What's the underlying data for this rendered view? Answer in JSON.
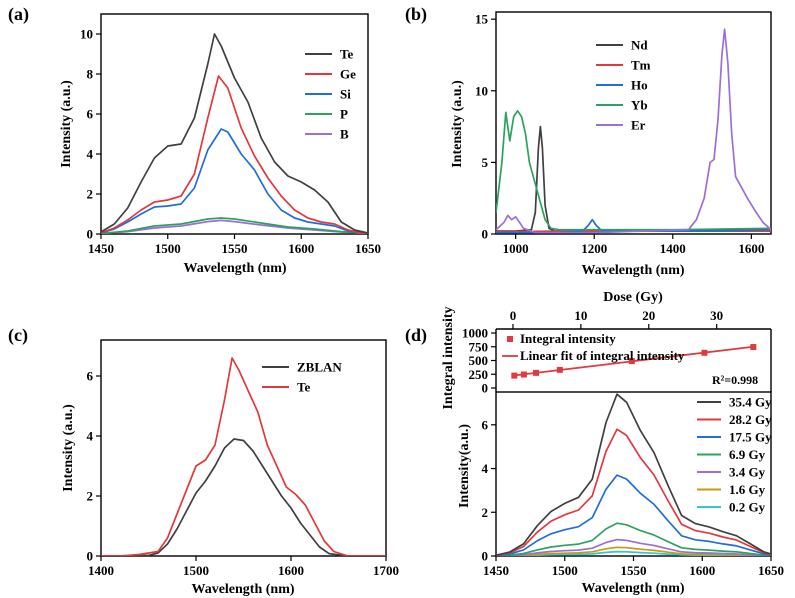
{
  "chart_data": [
    {
      "panel": "(a)",
      "type": "line",
      "xlabel": "Wavelength (nm)",
      "ylabel": "Intensity (a.u.)",
      "xlim": [
        1450,
        1650
      ],
      "ylim": [
        0,
        11
      ],
      "xticks": [
        1450,
        1500,
        1550,
        1600,
        1650
      ],
      "yticks": [
        0,
        2,
        4,
        6,
        8,
        10
      ],
      "legend_position": "top-right",
      "series": [
        {
          "name": "Te",
          "color": "#404040",
          "x": [
            1450,
            1460,
            1470,
            1480,
            1490,
            1500,
            1510,
            1520,
            1530,
            1535,
            1540,
            1550,
            1560,
            1570,
            1580,
            1590,
            1600,
            1610,
            1620,
            1630,
            1640,
            1650
          ],
          "y": [
            0.1,
            0.5,
            1.3,
            2.6,
            3.8,
            4.4,
            4.5,
            5.8,
            8.5,
            10.0,
            9.4,
            7.8,
            6.6,
            4.8,
            3.6,
            2.9,
            2.6,
            2.2,
            1.6,
            0.6,
            0.2,
            0.05
          ]
        },
        {
          "name": "Ge",
          "color": "#e0393e",
          "x": [
            1450,
            1460,
            1470,
            1480,
            1490,
            1500,
            1510,
            1520,
            1530,
            1538,
            1545,
            1555,
            1565,
            1575,
            1585,
            1595,
            1605,
            1615,
            1625,
            1635,
            1645,
            1650
          ],
          "y": [
            0.05,
            0.3,
            0.7,
            1.2,
            1.6,
            1.7,
            1.9,
            3.0,
            5.8,
            7.9,
            7.3,
            5.3,
            3.9,
            2.8,
            1.9,
            1.2,
            0.8,
            0.6,
            0.5,
            0.2,
            0.05,
            0.02
          ]
        },
        {
          "name": "Si",
          "color": "#1f6fd6",
          "x": [
            1450,
            1460,
            1470,
            1480,
            1490,
            1500,
            1510,
            1520,
            1530,
            1540,
            1545,
            1555,
            1565,
            1575,
            1585,
            1595,
            1605,
            1615,
            1625,
            1635,
            1645,
            1650
          ],
          "y": [
            0.05,
            0.25,
            0.6,
            1.0,
            1.35,
            1.4,
            1.5,
            2.3,
            4.2,
            5.25,
            5.1,
            4.0,
            3.2,
            2.0,
            1.2,
            0.8,
            0.6,
            0.5,
            0.4,
            0.15,
            0.05,
            0.02
          ]
        },
        {
          "name": "P",
          "color": "#2ca25f",
          "x": [
            1450,
            1470,
            1490,
            1510,
            1530,
            1540,
            1550,
            1570,
            1590,
            1610,
            1630,
            1650
          ],
          "y": [
            0.02,
            0.15,
            0.4,
            0.5,
            0.75,
            0.8,
            0.75,
            0.55,
            0.35,
            0.25,
            0.12,
            0.02
          ]
        },
        {
          "name": "B",
          "color": "#9c6fd6",
          "x": [
            1450,
            1470,
            1490,
            1510,
            1530,
            1540,
            1550,
            1570,
            1590,
            1610,
            1630,
            1650
          ],
          "y": [
            0.02,
            0.12,
            0.3,
            0.4,
            0.62,
            0.68,
            0.62,
            0.45,
            0.3,
            0.2,
            0.1,
            0.02
          ]
        }
      ]
    },
    {
      "panel": "(b)",
      "type": "line",
      "xlabel": "Wavelength (nm)",
      "ylabel": "Intensity (a.u.)",
      "xlim": [
        950,
        1650
      ],
      "ylim": [
        0,
        15.5
      ],
      "xticks": [
        1000,
        1200,
        1400,
        1600
      ],
      "yticks": [
        0,
        5,
        10,
        15
      ],
      "legend_position": "top-center",
      "series": [
        {
          "name": "Nd",
          "color": "#404040",
          "x": [
            950,
            1000,
            1040,
            1050,
            1058,
            1063,
            1068,
            1075,
            1085,
            1100,
            1200,
            1300,
            1400,
            1500,
            1650
          ],
          "y": [
            0.2,
            0.2,
            0.3,
            1.5,
            6.0,
            7.5,
            6.0,
            2.0,
            0.4,
            0.2,
            0.2,
            0.2,
            0.2,
            0.3,
            0.3
          ]
        },
        {
          "name": "Tm",
          "color": "#e0393e",
          "x": [
            950,
            1100,
            1300,
            1500,
            1650
          ],
          "y": [
            0.15,
            0.2,
            0.2,
            0.2,
            0.2
          ]
        },
        {
          "name": "Ho",
          "color": "#1f6fd6",
          "x": [
            950,
            1100,
            1170,
            1185,
            1195,
            1205,
            1220,
            1300,
            1500,
            1650
          ],
          "y": [
            0.1,
            0.1,
            0.2,
            0.6,
            1.0,
            0.6,
            0.2,
            0.2,
            0.2,
            0.3
          ]
        },
        {
          "name": "Yb",
          "color": "#2ca25f",
          "x": [
            950,
            965,
            975,
            985,
            995,
            1005,
            1015,
            1025,
            1035,
            1045,
            1060,
            1075,
            1090,
            1110,
            1200,
            1400,
            1650
          ],
          "y": [
            1.5,
            5.0,
            8.5,
            6.5,
            8.2,
            8.6,
            8.2,
            7.0,
            5.0,
            4.0,
            2.5,
            1.0,
            0.4,
            0.3,
            0.3,
            0.3,
            0.4
          ]
        },
        {
          "name": "Er",
          "color": "#9c6fd6",
          "x": [
            950,
            970,
            980,
            990,
            1000,
            1010,
            1020,
            1050,
            1200,
            1440,
            1460,
            1480,
            1495,
            1505,
            1515,
            1525,
            1532,
            1540,
            1550,
            1560,
            1570,
            1590,
            1610,
            1630,
            1650
          ],
          "y": [
            0.3,
            0.8,
            1.3,
            1.0,
            1.2,
            0.8,
            0.4,
            0.1,
            0.1,
            0.3,
            1.0,
            2.5,
            5.0,
            5.2,
            8.0,
            12.5,
            14.3,
            12.0,
            7.0,
            4.0,
            3.5,
            2.5,
            1.6,
            0.8,
            0.3
          ]
        }
      ]
    },
    {
      "panel": "(c)",
      "type": "line",
      "xlabel": "Wavelength (nm)",
      "ylabel": "Intensity (a.u.)",
      "xlim": [
        1400,
        1700
      ],
      "ylim": [
        0,
        7.2
      ],
      "xticks": [
        1400,
        1500,
        1600,
        1700
      ],
      "yticks": [
        0,
        2,
        4,
        6
      ],
      "legend_position": "top-right",
      "series": [
        {
          "name": "ZBLAN",
          "color": "#404040",
          "x": [
            1400,
            1430,
            1450,
            1460,
            1470,
            1480,
            1490,
            1500,
            1510,
            1520,
            1530,
            1540,
            1550,
            1560,
            1570,
            1580,
            1590,
            1600,
            1610,
            1620,
            1630,
            1640,
            1660,
            1700
          ],
          "y": [
            0,
            0,
            0.02,
            0.1,
            0.4,
            0.9,
            1.5,
            2.1,
            2.5,
            3.0,
            3.6,
            3.9,
            3.85,
            3.5,
            3.0,
            2.5,
            2.0,
            1.6,
            1.1,
            0.7,
            0.3,
            0.08,
            0,
            0
          ]
        },
        {
          "name": "Te",
          "color": "#e0393e",
          "x": [
            1400,
            1420,
            1440,
            1450,
            1460,
            1470,
            1480,
            1490,
            1500,
            1510,
            1520,
            1530,
            1538,
            1545,
            1555,
            1565,
            1575,
            1585,
            1595,
            1605,
            1615,
            1625,
            1635,
            1645,
            1660,
            1700
          ],
          "y": [
            0,
            0,
            0.05,
            0.1,
            0.15,
            0.6,
            1.4,
            2.2,
            3.0,
            3.2,
            3.7,
            5.2,
            6.6,
            6.2,
            5.5,
            4.8,
            3.7,
            3.0,
            2.3,
            2.05,
            1.7,
            1.1,
            0.5,
            0.15,
            0,
            0
          ]
        }
      ]
    },
    {
      "panel": "(d)",
      "type": "line",
      "xlabel": "Wavelength (nm)",
      "ylabel": "Intensity(a.u.)",
      "xlim": [
        1450,
        1650
      ],
      "ylim": [
        0,
        7.5
      ],
      "xticks": [
        1450,
        1500,
        1550,
        1600,
        1650
      ],
      "yticks": [
        0,
        2,
        4,
        6
      ],
      "legend_position": "right",
      "series": [
        {
          "name": "35.4 Gy",
          "color": "#404040",
          "peak": 7.4
        },
        {
          "name": "28.2 Gy",
          "color": "#e0393e",
          "peak": 5.8
        },
        {
          "name": "17.5 Gy",
          "color": "#1f6fd6",
          "peak": 3.7
        },
        {
          "name": "6.9  Gy",
          "color": "#2ca25f",
          "peak": 1.5
        },
        {
          "name": "3.4  Gy",
          "color": "#9c6fd6",
          "peak": 0.75
        },
        {
          "name": "1.6  Gy",
          "color": "#c89a10",
          "peak": 0.4
        },
        {
          "name": "0.2  Gy",
          "color": "#33c7c7",
          "peak": 0.2
        }
      ],
      "base_shape": {
        "x": [
          1450,
          1460,
          1470,
          1480,
          1490,
          1500,
          1510,
          1520,
          1530,
          1538,
          1545,
          1555,
          1565,
          1575,
          1585,
          1595,
          1605,
          1615,
          1625,
          1635,
          1645,
          1650
        ],
        "y": [
          0.02,
          0.1,
          0.3,
          0.75,
          1.1,
          1.3,
          1.45,
          1.9,
          3.3,
          4.0,
          3.8,
          3.1,
          2.55,
          1.75,
          1.0,
          0.8,
          0.72,
          0.6,
          0.5,
          0.3,
          0.1,
          0.05
        ]
      }
    },
    {
      "panel": "(d-inset)",
      "type": "scatter",
      "xlabel": "Dose (Gy)",
      "ylabel": "Integral intensity",
      "xlim": [
        -2.5,
        38
      ],
      "ylim": [
        0,
        1000
      ],
      "xticks": [
        0,
        10,
        20,
        30
      ],
      "yticks": [
        0,
        250,
        500,
        750,
        1000
      ],
      "legend_position": "top-left",
      "series": [
        {
          "name": "Integral intensity",
          "color": "#e0393e",
          "x": [
            0.2,
            1.6,
            3.4,
            6.9,
            17.5,
            28.2,
            35.4
          ],
          "y": [
            225,
            245,
            275,
            330,
            490,
            640,
            745
          ]
        },
        {
          "name": "Linear fit of integral intensity",
          "color": "#e0393e",
          "x": [
            0,
            35.4
          ],
          "y": [
            225,
            750
          ]
        }
      ],
      "annotation": "R²=0.998"
    }
  ]
}
